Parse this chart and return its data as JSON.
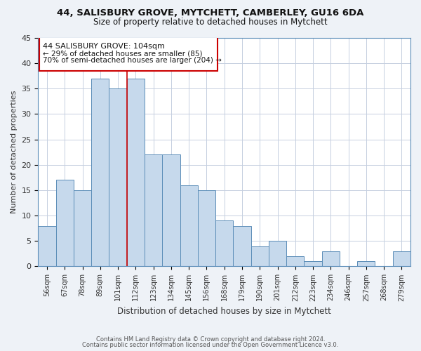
{
  "title": "44, SALISBURY GROVE, MYTCHETT, CAMBERLEY, GU16 6DA",
  "subtitle": "Size of property relative to detached houses in Mytchett",
  "xlabel": "Distribution of detached houses by size in Mytchett",
  "ylabel": "Number of detached properties",
  "categories": [
    "56sqm",
    "67sqm",
    "78sqm",
    "89sqm",
    "101sqm",
    "112sqm",
    "123sqm",
    "134sqm",
    "145sqm",
    "156sqm",
    "168sqm",
    "179sqm",
    "190sqm",
    "201sqm",
    "212sqm",
    "223sqm",
    "234sqm",
    "246sqm",
    "257sqm",
    "268sqm",
    "279sqm"
  ],
  "values": [
    8,
    17,
    15,
    37,
    35,
    37,
    22,
    22,
    16,
    15,
    9,
    8,
    4,
    5,
    2,
    1,
    3,
    0,
    1,
    0,
    3
  ],
  "bar_color": "#c6d9ec",
  "bar_edge_color": "#5b8db8",
  "highlight_line_color": "#cc0000",
  "annotation_title": "44 SALISBURY GROVE: 104sqm",
  "annotation_line1": "← 29% of detached houses are smaller (85)",
  "annotation_line2": "70% of semi-detached houses are larger (204) →",
  "annotation_box_edge_color": "#cc0000",
  "ylim": [
    0,
    45
  ],
  "yticks": [
    0,
    5,
    10,
    15,
    20,
    25,
    30,
    35,
    40,
    45
  ],
  "footer_line1": "Contains HM Land Registry data © Crown copyright and database right 2024.",
  "footer_line2": "Contains public sector information licensed under the Open Government Licence v3.0.",
  "background_color": "#eef2f7",
  "plot_background_color": "#ffffff",
  "grid_color": "#c5cfe0"
}
